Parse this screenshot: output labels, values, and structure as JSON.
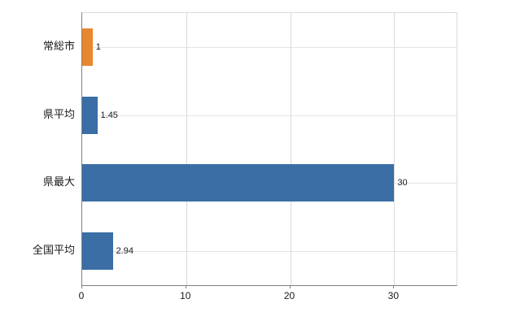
{
  "chart_data": {
    "type": "bar",
    "orientation": "horizontal",
    "title": "",
    "xlabel": "",
    "ylabel": "",
    "categories": [
      "常総市",
      "県平均",
      "県最大",
      "全国平均"
    ],
    "values": [
      1,
      1.45,
      30,
      2.94
    ],
    "value_labels": [
      "1",
      "1.45",
      "30",
      "2.94"
    ],
    "bar_colors": [
      "#e8872f",
      "#3a6ea5",
      "#3a6ea5",
      "#3a6ea5"
    ],
    "x_ticks": [
      0,
      10,
      20,
      30
    ],
    "xlim": [
      0,
      36
    ],
    "grid": true,
    "legend": "none",
    "grid_color": "#d9d9d9",
    "axis_color": "#808080",
    "text_color": "#1a1a1a",
    "background_color": "#ffffff"
  }
}
